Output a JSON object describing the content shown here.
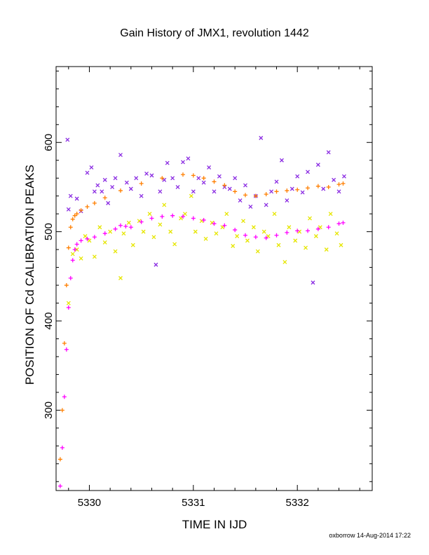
{
  "chart_data": {
    "type": "scatter",
    "title": "Gain History of JMX1, revolution 1442",
    "xlabel": "TIME IN IJD",
    "ylabel": "POSITION OF Cd CALIBRATION PEAKS",
    "xlim": [
      5329.68,
      5332.72
    ],
    "ylim": [
      210,
      685
    ],
    "x_ticks": [
      "5330",
      "5331",
      "5332"
    ],
    "y_ticks": [
      "300",
      "400",
      "500",
      "600"
    ],
    "grid": false,
    "legend": "none",
    "footer": "oxborrow 14-Aug-2014 17:22",
    "series": [
      {
        "color": "#8a2be2",
        "marker": "x",
        "x": [
          5329.79,
          5329.8,
          5329.82,
          5329.88,
          5329.92,
          5329.98,
          5330.02,
          5330.05,
          5330.08,
          5330.12,
          5330.15,
          5330.18,
          5330.22,
          5330.25,
          5330.3,
          5330.36,
          5330.4,
          5330.45,
          5330.5,
          5330.55,
          5330.6,
          5330.64,
          5330.68,
          5330.72,
          5330.75,
          5330.8,
          5330.85,
          5330.9,
          5330.95,
          5331.0,
          5331.05,
          5331.1,
          5331.15,
          5331.2,
          5331.25,
          5331.3,
          5331.35,
          5331.4,
          5331.45,
          5331.5,
          5331.55,
          5331.6,
          5331.65,
          5331.7,
          5331.75,
          5331.8,
          5331.85,
          5331.9,
          5331.95,
          5332.0,
          5332.05,
          5332.1,
          5332.15,
          5332.2,
          5332.25,
          5332.3,
          5332.35,
          5332.4,
          5332.45
        ],
        "y": [
          603,
          525,
          540,
          537,
          523,
          566,
          572,
          545,
          552,
          545,
          558,
          532,
          550,
          560,
          586,
          555,
          548,
          560,
          540,
          565,
          563,
          463,
          545,
          558,
          577,
          560,
          550,
          578,
          582,
          545,
          560,
          555,
          572,
          545,
          562,
          550,
          548,
          560,
          535,
          552,
          528,
          540,
          605,
          530,
          545,
          556,
          580,
          535,
          548,
          562,
          544,
          567,
          443,
          575,
          548,
          589,
          558,
          545,
          562
        ]
      },
      {
        "color": "#e6e600",
        "marker": "x",
        "x": [
          5329.8,
          5329.84,
          5329.88,
          5329.92,
          5329.96,
          5330.0,
          5330.05,
          5330.1,
          5330.15,
          5330.2,
          5330.25,
          5330.3,
          5330.33,
          5330.38,
          5330.42,
          5330.48,
          5330.52,
          5330.58,
          5330.62,
          5330.68,
          5330.72,
          5330.78,
          5330.82,
          5330.88,
          5330.92,
          5330.98,
          5331.02,
          5331.08,
          5331.12,
          5331.18,
          5331.22,
          5331.28,
          5331.32,
          5331.38,
          5331.42,
          5331.48,
          5331.52,
          5331.58,
          5331.62,
          5331.68,
          5331.72,
          5331.78,
          5331.82,
          5331.88,
          5331.92,
          5331.98,
          5332.02,
          5332.08,
          5332.12,
          5332.18,
          5332.22,
          5332.28,
          5332.32,
          5332.38,
          5332.42
        ],
        "y": [
          420,
          475,
          480,
          470,
          495,
          490,
          472,
          505,
          488,
          500,
          478,
          448,
          498,
          510,
          485,
          512,
          500,
          520,
          494,
          508,
          530,
          500,
          486,
          515,
          520,
          540,
          500,
          512,
          492,
          510,
          498,
          505,
          520,
          484,
          495,
          512,
          490,
          505,
          478,
          500,
          495,
          520,
          485,
          466,
          505,
          490,
          500,
          482,
          515,
          495,
          505,
          480,
          520,
          498,
          485
        ]
      },
      {
        "color": "#ff7f00",
        "marker": "+",
        "x": [
          5329.72,
          5329.74,
          5329.76,
          5329.78,
          5329.8,
          5329.82,
          5329.84,
          5329.86,
          5329.88,
          5329.92,
          5329.98,
          5330.05,
          5330.15,
          5330.3,
          5330.5,
          5330.7,
          5330.9,
          5331.0,
          5331.1,
          5331.2,
          5331.3,
          5331.4,
          5331.5,
          5331.6,
          5331.7,
          5331.8,
          5331.9,
          5332.0,
          5332.1,
          5332.2,
          5332.3,
          5332.4,
          5332.44
        ],
        "y": [
          245,
          300,
          375,
          440,
          482,
          505,
          514,
          518,
          520,
          524,
          528,
          532,
          538,
          546,
          554,
          560,
          564,
          563,
          560,
          556,
          552,
          545,
          541,
          540,
          542,
          545,
          546,
          547,
          549,
          551,
          550,
          553,
          554
        ]
      },
      {
        "color": "#ff00ff",
        "marker": "+",
        "x": [
          5329.72,
          5329.74,
          5329.76,
          5329.78,
          5329.8,
          5329.82,
          5329.84,
          5329.86,
          5329.88,
          5329.92,
          5329.98,
          5330.05,
          5330.15,
          5330.25,
          5330.3,
          5330.35,
          5330.4,
          5330.5,
          5330.6,
          5330.7,
          5330.8,
          5330.9,
          5331.0,
          5331.1,
          5331.2,
          5331.3,
          5331.4,
          5331.5,
          5331.6,
          5331.7,
          5331.8,
          5331.9,
          5332.0,
          5332.1,
          5332.2,
          5332.3,
          5332.4,
          5332.44
        ],
        "y": [
          215,
          258,
          315,
          368,
          415,
          448,
          468,
          480,
          486,
          490,
          492,
          494,
          498,
          503,
          507,
          506,
          505,
          511,
          515,
          517,
          518,
          517,
          515,
          513,
          509,
          507,
          502,
          496,
          494,
          493,
          496,
          499,
          501,
          501,
          503,
          505,
          509,
          510
        ]
      }
    ]
  }
}
